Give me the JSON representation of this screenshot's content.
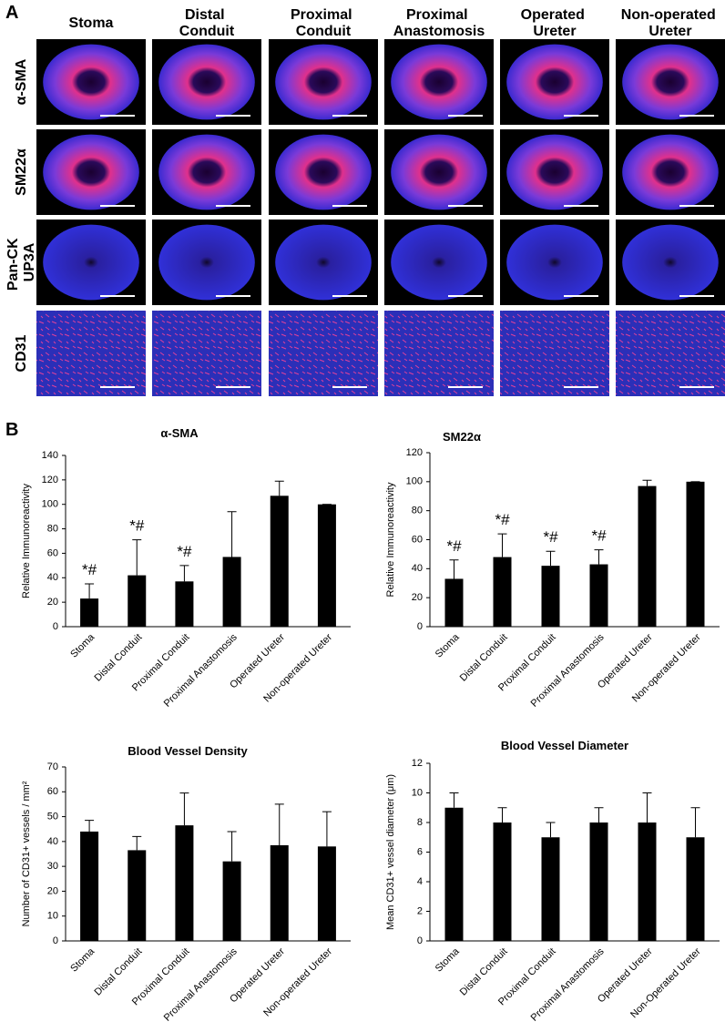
{
  "panel_labels": [
    "A",
    "B"
  ],
  "micrographs": {
    "columns": [
      "Stoma",
      "Distal Conduit",
      "Proximal Conduit",
      "Proximal Anastomosis",
      "Operated Ureter",
      "Non-operated Ureter"
    ],
    "rows": [
      "α-SMA",
      "SM22α",
      "Pan-CK UP3A",
      "CD31"
    ]
  },
  "chart_data": [
    {
      "type": "bar",
      "title": "α-SMA",
      "y_label": "Relative Immunoreactivity",
      "categories": [
        "Stoma",
        "Distal Conduit",
        "Proximal Conduit",
        "Proximal Anastomosis",
        "Operated Ureter",
        "Non-operated Ureter"
      ],
      "values": [
        23,
        42,
        37,
        57,
        107,
        100
      ],
      "errors": [
        12,
        29,
        13,
        37,
        12,
        0
      ],
      "annotations": [
        "*#",
        "*#",
        "*#",
        null,
        null,
        null
      ],
      "color": "#000000",
      "ylim": [
        0,
        140
      ],
      "yticks": [
        0,
        20,
        40,
        60,
        80,
        100,
        120,
        140
      ]
    },
    {
      "type": "bar",
      "title": "SM22α",
      "y_label": "Relative Immunoreactivity",
      "categories": [
        "Stoma",
        "Distal Conduit",
        "Proximal Conduit",
        "Proximal Anastomosis",
        "Operated Ureter",
        "Non-operated Ureter"
      ],
      "values": [
        33,
        48,
        42,
        43,
        97,
        100
      ],
      "errors": [
        13,
        16,
        10,
        10,
        4,
        0
      ],
      "annotations": [
        "*#",
        "*#",
        "*#",
        "*#",
        null,
        null
      ],
      "color": "#000000",
      "ylim": [
        0,
        120
      ],
      "yticks": [
        0,
        20,
        40,
        60,
        80,
        100,
        120
      ]
    },
    {
      "type": "bar",
      "title": "Blood Vessel Density",
      "y_label": "Number of CD31+ vessels / mm²",
      "categories": [
        "Stoma",
        "Distal Conduit",
        "Proximal Conduit",
        "Proximal Anastomosis",
        "Operated Ureter",
        "Non-operated Ureter"
      ],
      "values": [
        44,
        36.5,
        46.5,
        32,
        38.5,
        38
      ],
      "errors": [
        4.5,
        5.5,
        13,
        12,
        16.5,
        14
      ],
      "color": "#000000",
      "ylim": [
        0,
        70
      ],
      "yticks": [
        0,
        10,
        20,
        30,
        40,
        50,
        60,
        70
      ]
    },
    {
      "type": "bar",
      "title": "Blood Vessel Diameter",
      "y_label": "Mean CD31+ vessel diameter (μm)",
      "categories": [
        "Stoma",
        "Distal Conduit",
        "Proximal Conduit",
        "Proximal Anastomosis",
        "Operated Ureter",
        "Non-Operated Ureter"
      ],
      "values": [
        9,
        8,
        7,
        8,
        8,
        7
      ],
      "errors": [
        1,
        1,
        1,
        1,
        2,
        2
      ],
      "color": "#000000",
      "ylim": [
        0,
        12
      ],
      "yticks": [
        0,
        2,
        4,
        6,
        8,
        10,
        12
      ]
    }
  ]
}
